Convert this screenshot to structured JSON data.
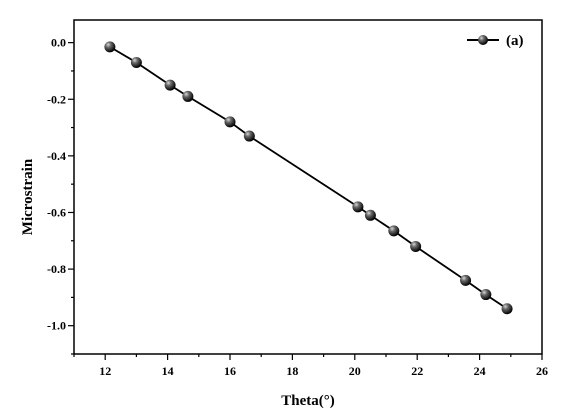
{
  "chart_data": {
    "type": "line",
    "xlabel": "Theta(°)",
    "ylabel": "Microstrain",
    "xlim": [
      11,
      26
    ],
    "ylim": [
      -1.1,
      0.08
    ],
    "x_ticks": [
      12,
      14,
      16,
      18,
      20,
      22,
      24,
      26
    ],
    "y_ticks": [
      0.0,
      -0.2,
      -0.4,
      -0.6,
      -0.8,
      -1.0
    ],
    "x_tick_labels": [
      "12",
      "14",
      "16",
      "18",
      "20",
      "22",
      "24",
      "26"
    ],
    "y_tick_labels": [
      "0.0",
      "-0.2",
      "-0.4",
      "-0.6",
      "-0.8",
      "-1.0"
    ],
    "grid": false,
    "legend_position": "top-right",
    "series": [
      {
        "name": "(a)",
        "color": "#000000",
        "marker": "sphere",
        "x": [
          12.15,
          13.0,
          14.08,
          14.65,
          16.0,
          16.62,
          20.1,
          20.5,
          21.25,
          21.95,
          23.55,
          24.2,
          24.88
        ],
        "y": [
          -0.015,
          -0.07,
          -0.15,
          -0.19,
          -0.28,
          -0.33,
          -0.58,
          -0.61,
          -0.665,
          -0.72,
          -0.84,
          -0.89,
          -0.94
        ]
      }
    ]
  }
}
